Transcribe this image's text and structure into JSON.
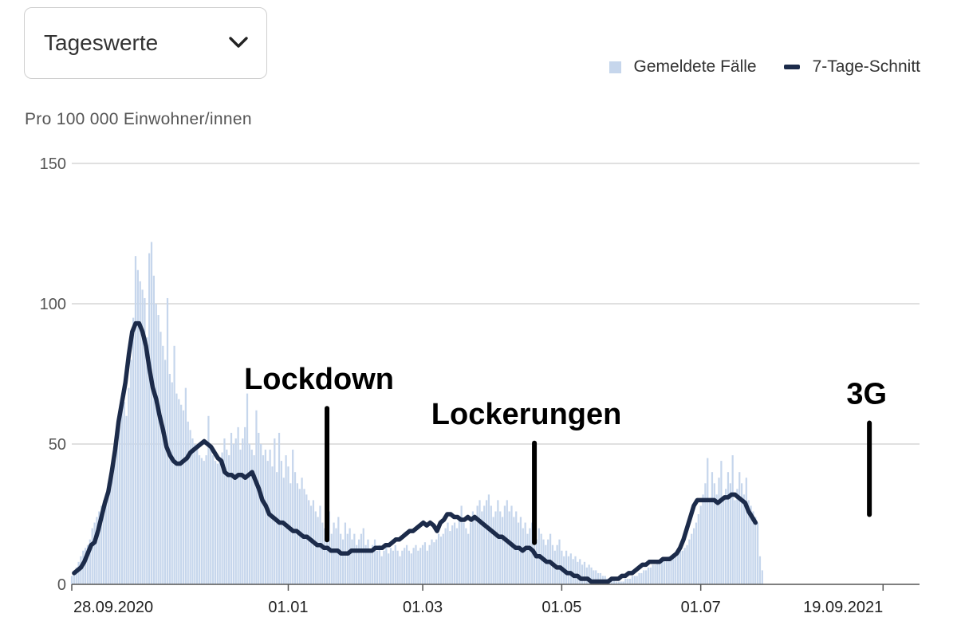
{
  "controls": {
    "view_select": {
      "selected": "Tageswerte"
    }
  },
  "legend": {
    "bars": "Gemeldete Fälle",
    "line": "7-Tage-Schnitt"
  },
  "y_axis_label": "Pro 100 000 Einwohner/innen",
  "colors": {
    "bars": "#c6d6ec",
    "line": "#1c2b4a",
    "grid": "#d6d6d6"
  },
  "chart_data": {
    "type": "bar",
    "xlabel": "",
    "ylabel": "Pro 100 000 Einwohner/innen",
    "ylim": [
      0,
      150
    ],
    "yticks": [
      0,
      50,
      100,
      150
    ],
    "x_range": [
      "2020-09-28",
      "2021-10-05"
    ],
    "xticks": [
      {
        "date": "2020-09-28",
        "label": "28.09.2020"
      },
      {
        "date": "2021-01-01",
        "label": "01.01"
      },
      {
        "date": "2021-03-01",
        "label": "01.03"
      },
      {
        "date": "2021-05-01",
        "label": "01.05"
      },
      {
        "date": "2021-07-01",
        "label": "01.07"
      },
      {
        "date": "2021-09-19",
        "label": "19.09.2021"
      }
    ],
    "grid": true,
    "legend_position": "top-right",
    "series": [
      {
        "name": "Gemeldete Fälle",
        "type": "bar",
        "values": [
          3,
          4,
          6,
          8,
          10,
          12,
          13,
          14,
          16,
          20,
          22,
          24,
          26,
          28,
          30,
          32,
          36,
          40,
          45,
          50,
          55,
          60,
          62,
          65,
          60,
          70,
          80,
          95,
          117,
          112,
          108,
          105,
          102,
          88,
          118,
          122,
          110,
          100,
          96,
          90,
          85,
          80,
          102,
          75,
          72,
          85,
          68,
          66,
          64,
          62,
          70,
          58,
          55,
          52,
          50,
          48,
          46,
          45,
          44,
          46,
          60,
          48,
          46,
          44,
          43,
          45,
          47,
          52,
          48,
          46,
          54,
          50,
          52,
          56,
          48,
          52,
          56,
          68,
          50,
          48,
          46,
          62,
          54,
          50,
          46,
          48,
          44,
          48,
          42,
          52,
          40,
          54,
          44,
          38,
          46,
          42,
          36,
          48,
          40,
          36,
          34,
          38,
          34,
          32,
          30,
          28,
          30,
          26,
          24,
          28,
          22,
          20,
          22,
          26,
          18,
          22,
          20,
          24,
          18,
          16,
          22,
          18,
          20,
          16,
          18,
          14,
          16,
          18,
          20,
          14,
          16,
          12,
          14,
          16,
          12,
          14,
          10,
          12,
          14,
          11,
          13,
          12,
          14,
          12,
          10,
          12,
          13,
          14,
          12,
          11,
          13,
          14,
          12,
          13,
          14,
          15,
          12,
          14,
          16,
          15,
          16,
          18,
          17,
          18,
          20,
          22,
          19,
          21,
          22,
          20,
          24,
          28,
          22,
          20,
          18,
          22,
          26,
          24,
          28,
          30,
          26,
          28,
          30,
          32,
          28,
          24,
          26,
          30,
          26,
          24,
          28,
          30,
          26,
          28,
          24,
          26,
          22,
          24,
          20,
          22,
          18,
          20,
          22,
          18,
          16,
          20,
          18,
          16,
          14,
          16,
          18,
          14,
          12,
          14,
          16,
          12,
          10,
          12,
          10,
          11,
          9,
          10,
          8,
          9,
          7,
          8,
          6,
          7,
          6,
          5,
          5,
          4,
          4,
          3,
          3,
          2,
          2,
          2,
          2,
          1,
          1,
          1,
          1,
          2,
          2,
          2,
          3,
          3,
          3,
          4,
          4,
          5,
          5,
          6,
          6,
          7,
          7,
          8,
          8,
          8,
          9,
          9,
          10,
          9,
          10,
          10,
          11,
          12,
          12,
          13,
          14,
          16,
          18,
          20,
          22,
          25,
          28,
          32,
          36,
          45,
          30,
          40,
          36,
          32,
          38,
          44,
          30,
          34,
          40,
          36,
          46,
          30,
          34,
          40,
          36,
          32,
          38,
          30,
          28,
          26,
          24,
          22,
          10,
          5
        ]
      },
      {
        "name": "7-Tage-Schnitt",
        "type": "line",
        "values": [
          4,
          5,
          6,
          8,
          11,
          14,
          15,
          19,
          24,
          29,
          33,
          40,
          48,
          58,
          65,
          72,
          82,
          90,
          93,
          93,
          90,
          85,
          77,
          70,
          66,
          60,
          55,
          49,
          46,
          44,
          43,
          43,
          44,
          45,
          47,
          48,
          49,
          50,
          51,
          50,
          49,
          47,
          45,
          44,
          40,
          39,
          39,
          38,
          39,
          39,
          38,
          39,
          40,
          37,
          34,
          30,
          28,
          25,
          24,
          23,
          22,
          22,
          21,
          20,
          19,
          19,
          18,
          17,
          17,
          16,
          15,
          14,
          14,
          13,
          13,
          12,
          12,
          12,
          11,
          11,
          11,
          12,
          12,
          12,
          12,
          12,
          12,
          12,
          13,
          13,
          13,
          14,
          14,
          15,
          16,
          16,
          17,
          18,
          19,
          19,
          20,
          21,
          22,
          21,
          22,
          21,
          19,
          22,
          23,
          25,
          25,
          24,
          24,
          23,
          23,
          24,
          23,
          24,
          23,
          22,
          21,
          20,
          19,
          18,
          17,
          17,
          16,
          15,
          14,
          13,
          13,
          12,
          13,
          13,
          12,
          10,
          10,
          9,
          8,
          8,
          7,
          6,
          6,
          5,
          4,
          4,
          3,
          3,
          2,
          2,
          2,
          1,
          1,
          1,
          1,
          1,
          1,
          2,
          2,
          2,
          3,
          3,
          4,
          4,
          5,
          6,
          7,
          7,
          8,
          8,
          8,
          8,
          9,
          9,
          9,
          10,
          11,
          13,
          16,
          20,
          24,
          28,
          30,
          30,
          30,
          30,
          30,
          30,
          29,
          30,
          31,
          31,
          32,
          32,
          31,
          30,
          29,
          26,
          24,
          22
        ]
      }
    ],
    "annotations": [
      {
        "text": "Lockdown",
        "date": "2021-01-18"
      },
      {
        "text": "Lockerungen",
        "date": "2021-04-19"
      },
      {
        "text": "3G",
        "date": "2021-09-13"
      }
    ]
  }
}
